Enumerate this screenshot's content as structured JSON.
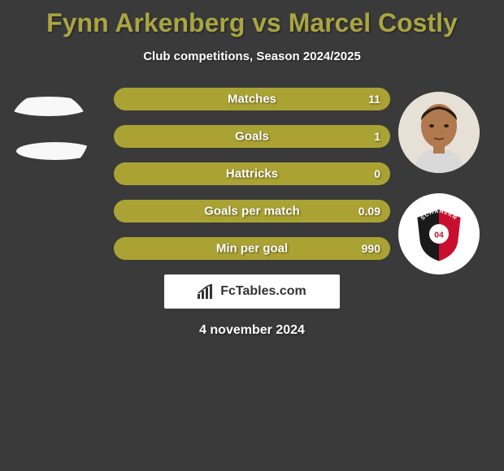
{
  "title": "Fynn Arkenberg vs Marcel Costly",
  "title_color": "#a9a542",
  "subtitle": "Club competitions, Season 2024/2025",
  "background_color": "#3a3a3a",
  "bar_color": "#aba234",
  "text_color": "#ffffff",
  "bars": [
    {
      "label": "Matches",
      "left": "",
      "right": "11",
      "split_pct": 0
    },
    {
      "label": "Goals",
      "left": "",
      "right": "1",
      "split_pct": 0
    },
    {
      "label": "Hattricks",
      "left": "",
      "right": "0",
      "split_pct": 0
    },
    {
      "label": "Goals per match",
      "left": "",
      "right": "0.09",
      "split_pct": 0
    },
    {
      "label": "Min per goal",
      "left": "",
      "right": "990",
      "split_pct": 0
    }
  ],
  "brand": "FcTables.com",
  "date": "4 november 2024",
  "player_left": {
    "name": "Fynn Arkenberg"
  },
  "player_right": {
    "name": "Marcel Costly",
    "club": "FC Ingolstadt"
  },
  "club_badge_right": {
    "bg": "#ffffff",
    "shield_red": "#c8102e",
    "shield_black": "#1a1a1a",
    "text": "SCHANZER",
    "num": "04"
  },
  "fontsizes": {
    "title": 32,
    "subtitle": 15,
    "bar_label": 15,
    "bar_value": 14,
    "date": 16
  }
}
